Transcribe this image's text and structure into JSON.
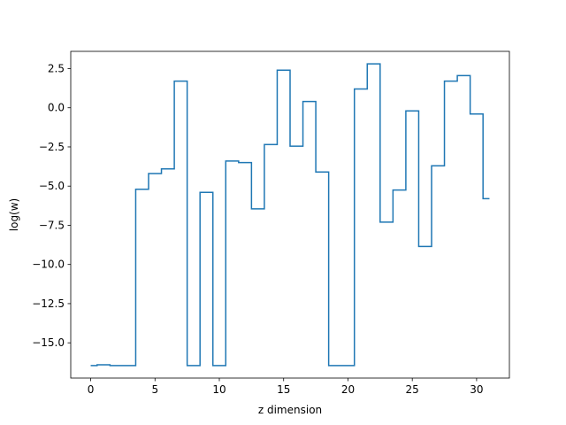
{
  "chart_data": {
    "type": "line",
    "drawstyle": "steps-mid",
    "title": "",
    "xlabel": "z dimension",
    "ylabel": "log(w)",
    "xlim": [
      -1.55,
      32.55
    ],
    "ylim": [
      -17.25,
      3.6
    ],
    "grid": false,
    "line_color": "#1f77b4",
    "xticks": [
      {
        "value": 0,
        "label": "0"
      },
      {
        "value": 5,
        "label": "5"
      },
      {
        "value": 10,
        "label": "10"
      },
      {
        "value": 15,
        "label": "15"
      },
      {
        "value": 20,
        "label": "20"
      },
      {
        "value": 25,
        "label": "25"
      },
      {
        "value": 30,
        "label": "30"
      }
    ],
    "yticks": [
      {
        "value": 2.5,
        "label": "2.5"
      },
      {
        "value": 0.0,
        "label": "0.0"
      },
      {
        "value": -2.5,
        "label": "−2.5"
      },
      {
        "value": -5.0,
        "label": "−5.0"
      },
      {
        "value": -7.5,
        "label": "−7.5"
      },
      {
        "value": -10.0,
        "label": "−10.0"
      },
      {
        "value": -12.5,
        "label": "−12.5"
      },
      {
        "value": -15.0,
        "label": "−15.0"
      }
    ],
    "series": [
      {
        "x": [
          0,
          1,
          2,
          3,
          4,
          5,
          6,
          7,
          8,
          9,
          10,
          11,
          12,
          13,
          14,
          15,
          16,
          17,
          18,
          19,
          20,
          21,
          22,
          23,
          24,
          25,
          26,
          27,
          28,
          29,
          30,
          31
        ],
        "values": [
          -16.45,
          -16.4,
          -16.45,
          -16.45,
          -5.2,
          -4.2,
          -3.9,
          1.7,
          -16.45,
          -5.4,
          -16.45,
          -3.4,
          -3.5,
          -6.45,
          -2.35,
          2.4,
          -2.45,
          0.4,
          -4.1,
          -16.45,
          -16.45,
          1.2,
          2.8,
          -7.3,
          -5.25,
          -0.2,
          -8.85,
          -3.7,
          1.7,
          2.05,
          -0.4,
          -5.8
        ]
      }
    ]
  }
}
